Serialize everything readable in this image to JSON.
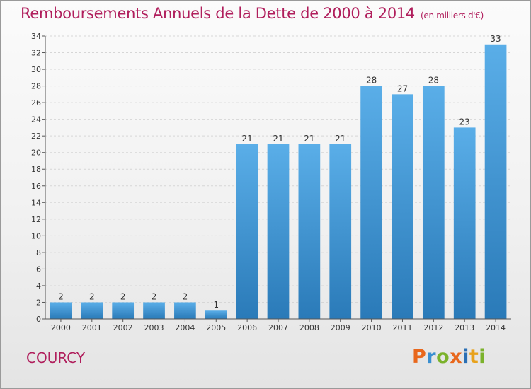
{
  "chart_title": "Remboursements Annuels de la Dette de 2000 à 2014",
  "chart_unit": "(en milliers d'€)",
  "commune_name": "COURCY",
  "logo_text": "Proxiti",
  "colors": {
    "title": "#b01e5c",
    "bar_top": "#5aaee8",
    "bar_bottom": "#2a7ab8",
    "logo_letters": [
      "#e8671c",
      "#3a8fd0",
      "#7bb22b",
      "#e8671c",
      "#2a6fb4",
      "#e8a21c",
      "#7bb22b"
    ]
  },
  "chart_data": {
    "type": "bar",
    "title": "Remboursements Annuels de la Dette de 2000 à 2014",
    "subtitle": "(en milliers d'€)",
    "xlabel": "",
    "ylabel": "",
    "categories": [
      "2000",
      "2001",
      "2002",
      "2003",
      "2004",
      "2005",
      "2006",
      "2007",
      "2008",
      "2009",
      "2010",
      "2011",
      "2012",
      "2013",
      "2014"
    ],
    "values": [
      2,
      2,
      2,
      2,
      2,
      1,
      21,
      21,
      21,
      21,
      28,
      27,
      28,
      23,
      33
    ],
    "ylim": [
      0,
      34
    ],
    "yticks": [
      0,
      2,
      4,
      6,
      8,
      10,
      12,
      14,
      16,
      18,
      20,
      22,
      24,
      26,
      28,
      30,
      32,
      34
    ],
    "grid": true,
    "legend": "none"
  }
}
